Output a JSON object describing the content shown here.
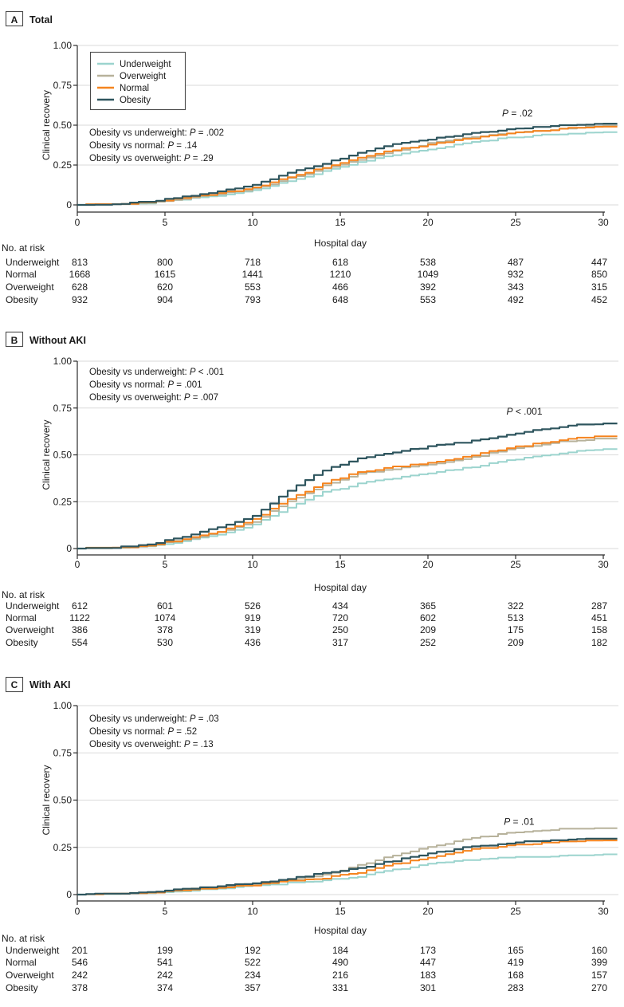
{
  "colors": {
    "underweight": "#9CD4CE",
    "overweight": "#B7B29B",
    "normal": "#F5841F",
    "obesity": "#2E555E",
    "grid": "#DADADA",
    "axis": "#2B2B2B",
    "text": "#1A1A1A"
  },
  "legend": {
    "items": [
      {
        "label": "Underweight",
        "color_key": "underweight"
      },
      {
        "label": "Overweight",
        "color_key": "overweight"
      },
      {
        "label": "Normal",
        "color_key": "normal"
      },
      {
        "label": "Obesity",
        "color_key": "obesity"
      }
    ]
  },
  "axis": {
    "x_label": "Hospital day",
    "y_label": "Clinical recovery",
    "x_ticks": [
      0,
      5,
      10,
      15,
      20,
      25,
      30
    ],
    "y_ticks": [
      {
        "v": 0,
        "label": "0"
      },
      {
        "v": 0.25,
        "label": "0.25"
      },
      {
        "v": 0.5,
        "label": "0.50"
      },
      {
        "v": 0.75,
        "label": "0.75"
      },
      {
        "v": 1,
        "label": "1.00"
      }
    ]
  },
  "risk_label": "No. at risk",
  "chart_data": [
    {
      "type": "line",
      "panel": "A",
      "title": "Total",
      "xlabel": "Hospital day",
      "ylabel": "Clinical recovery",
      "xlim": [
        0,
        30
      ],
      "ylim": [
        0,
        1
      ],
      "show_legend": true,
      "annotations": [
        "Obesity vs underweight: P = .002",
        "Obesity vs normal: P = .14",
        "Obesity vs overweight: P = .29"
      ],
      "p_label": {
        "text": "P = .02",
        "day": 25.1,
        "value": 0.555
      },
      "days": [
        0,
        2,
        4,
        6,
        8,
        10,
        12,
        14,
        16,
        18,
        20,
        22,
        24,
        26,
        28,
        30
      ],
      "series": [
        {
          "name": "Underweight",
          "color_key": "underweight",
          "values": [
            0,
            0.002,
            0.012,
            0.035,
            0.06,
            0.09,
            0.15,
            0.21,
            0.265,
            0.315,
            0.35,
            0.385,
            0.415,
            0.435,
            0.447,
            0.455
          ]
        },
        {
          "name": "Overweight",
          "color_key": "overweight",
          "values": [
            0,
            0.002,
            0.014,
            0.04,
            0.068,
            0.1,
            0.165,
            0.225,
            0.285,
            0.335,
            0.385,
            0.418,
            0.442,
            0.462,
            0.482,
            0.497
          ]
        },
        {
          "name": "Normal",
          "color_key": "normal",
          "values": [
            0,
            0.003,
            0.016,
            0.045,
            0.072,
            0.107,
            0.175,
            0.235,
            0.295,
            0.345,
            0.378,
            0.412,
            0.44,
            0.464,
            0.48,
            0.49
          ]
        },
        {
          "name": "Obesity",
          "color_key": "obesity",
          "values": [
            0,
            0.004,
            0.02,
            0.052,
            0.082,
            0.13,
            0.2,
            0.26,
            0.325,
            0.385,
            0.413,
            0.442,
            0.467,
            0.487,
            0.5,
            0.51
          ]
        }
      ],
      "risk_table": {
        "rows": [
          {
            "label": "Underweight",
            "values": [
              813,
              800,
              718,
              618,
              538,
              487,
              447
            ]
          },
          {
            "label": "Normal",
            "values": [
              1668,
              1615,
              1441,
              1210,
              1049,
              932,
              850
            ]
          },
          {
            "label": "Overweight",
            "values": [
              628,
              620,
              553,
              466,
              392,
              343,
              315
            ]
          },
          {
            "label": "Obesity",
            "values": [
              932,
              904,
              793,
              648,
              553,
              492,
              452
            ]
          }
        ]
      }
    },
    {
      "type": "line",
      "panel": "B",
      "title": "Without AKI",
      "xlabel": "Hospital day",
      "ylabel": "Clinical recovery",
      "xlim": [
        0,
        30
      ],
      "ylim": [
        0,
        1
      ],
      "show_legend": false,
      "annotations": [
        "Obesity vs underweight: P < .001",
        "Obesity vs normal: P = .001",
        "Obesity vs overweight: P = .007"
      ],
      "p_label": {
        "text": "P < .001",
        "day": 25.5,
        "value": 0.715
      },
      "days": [
        0,
        2,
        4,
        6,
        8,
        10,
        12,
        14,
        16,
        18,
        20,
        22,
        24,
        26,
        28,
        30
      ],
      "series": [
        {
          "name": "Underweight",
          "color_key": "underweight",
          "values": [
            0,
            0.002,
            0.012,
            0.04,
            0.075,
            0.128,
            0.215,
            0.3,
            0.345,
            0.375,
            0.4,
            0.428,
            0.462,
            0.49,
            0.515,
            0.53
          ]
        },
        {
          "name": "Overweight",
          "color_key": "overweight",
          "values": [
            0,
            0.003,
            0.015,
            0.046,
            0.085,
            0.145,
            0.255,
            0.335,
            0.398,
            0.425,
            0.445,
            0.475,
            0.52,
            0.55,
            0.575,
            0.59
          ]
        },
        {
          "name": "Normal",
          "color_key": "normal",
          "values": [
            0,
            0.003,
            0.016,
            0.05,
            0.09,
            0.155,
            0.265,
            0.35,
            0.408,
            0.436,
            0.455,
            0.487,
            0.528,
            0.558,
            0.585,
            0.6
          ]
        },
        {
          "name": "Obesity",
          "color_key": "obesity",
          "values": [
            0,
            0.004,
            0.022,
            0.062,
            0.112,
            0.175,
            0.31,
            0.42,
            0.478,
            0.512,
            0.545,
            0.568,
            0.6,
            0.63,
            0.655,
            0.67
          ]
        }
      ],
      "risk_table": {
        "rows": [
          {
            "label": "Underweight",
            "values": [
              612,
              601,
              526,
              434,
              365,
              322,
              287
            ]
          },
          {
            "label": "Normal",
            "values": [
              1122,
              1074,
              919,
              720,
              602,
              513,
              451
            ]
          },
          {
            "label": "Overweight",
            "values": [
              386,
              378,
              319,
              250,
              209,
              175,
              158
            ]
          },
          {
            "label": "Obesity",
            "values": [
              554,
              530,
              436,
              317,
              252,
              209,
              182
            ]
          }
        ]
      }
    },
    {
      "type": "line",
      "panel": "C",
      "title": "With AKI",
      "xlabel": "Hospital day",
      "ylabel": "Clinical recovery",
      "xlim": [
        0,
        30
      ],
      "ylim": [
        0,
        1
      ],
      "show_legend": false,
      "annotations": [
        "Obesity vs underweight: P = .03",
        "Obesity vs normal: P = .52",
        "Obesity vs overweight: P = .13"
      ],
      "p_label": {
        "text": "P = .01",
        "day": 25.2,
        "value": 0.37
      },
      "days": [
        0,
        2,
        4,
        6,
        8,
        10,
        12,
        14,
        16,
        18,
        20,
        22,
        24,
        26,
        28,
        30
      ],
      "series": [
        {
          "name": "Underweight",
          "color_key": "underweight",
          "values": [
            0,
            0.002,
            0.008,
            0.02,
            0.032,
            0.046,
            0.06,
            0.076,
            0.097,
            0.13,
            0.165,
            0.182,
            0.193,
            0.2,
            0.207,
            0.21
          ]
        },
        {
          "name": "Overweight",
          "color_key": "overweight",
          "values": [
            0,
            0.002,
            0.01,
            0.025,
            0.04,
            0.056,
            0.076,
            0.105,
            0.155,
            0.21,
            0.253,
            0.29,
            0.318,
            0.338,
            0.348,
            0.35
          ]
        },
        {
          "name": "Normal",
          "color_key": "normal",
          "values": [
            0,
            0.002,
            0.009,
            0.022,
            0.036,
            0.05,
            0.07,
            0.088,
            0.116,
            0.16,
            0.198,
            0.233,
            0.255,
            0.27,
            0.28,
            0.285
          ]
        },
        {
          "name": "Obesity",
          "color_key": "obesity",
          "values": [
            0,
            0.003,
            0.013,
            0.028,
            0.046,
            0.062,
            0.082,
            0.115,
            0.14,
            0.18,
            0.218,
            0.248,
            0.268,
            0.282,
            0.29,
            0.295
          ]
        }
      ],
      "risk_table": {
        "rows": [
          {
            "label": "Underweight",
            "values": [
              201,
              199,
              192,
              184,
              173,
              165,
              160
            ]
          },
          {
            "label": "Normal",
            "values": [
              546,
              541,
              522,
              490,
              447,
              419,
              399
            ]
          },
          {
            "label": "Overweight",
            "values": [
              242,
              242,
              234,
              216,
              183,
              168,
              157
            ]
          },
          {
            "label": "Obesity",
            "values": [
              378,
              374,
              357,
              331,
              301,
              283,
              270
            ]
          }
        ]
      }
    }
  ]
}
